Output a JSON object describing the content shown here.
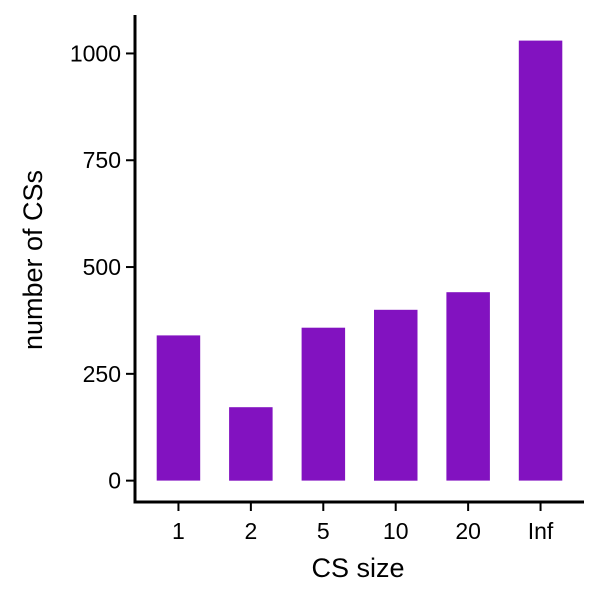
{
  "chart_data": {
    "type": "bar",
    "title": "",
    "xlabel": "CS size",
    "ylabel": "number of CSs",
    "categories": [
      "1",
      "2",
      "5",
      "10",
      "20",
      "Inf"
    ],
    "values": [
      340,
      172,
      358,
      400,
      441,
      1030
    ],
    "ylim": [
      -50,
      1090
    ],
    "yticks": [
      0,
      250,
      500,
      750,
      1000
    ],
    "grid": false,
    "legend": "none",
    "bar_color": "#8212C0",
    "axis_color": "#000000"
  }
}
